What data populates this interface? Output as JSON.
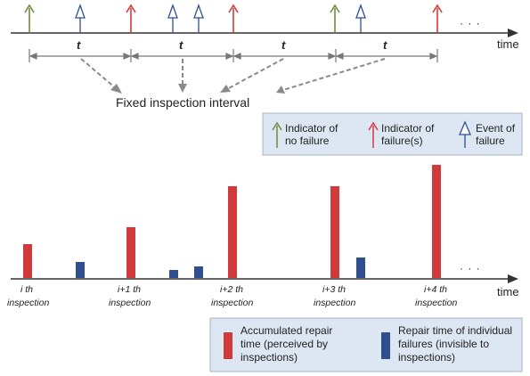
{
  "timeline": {
    "axis_label": "time",
    "ellipsis": "· · ·",
    "interval_symbol": "t",
    "caption": "Fixed inspection interval",
    "arrows": [
      {
        "kind": "no_failure"
      },
      {
        "kind": "failure_event"
      },
      {
        "kind": "failure_indicator"
      },
      {
        "kind": "failure_event"
      },
      {
        "kind": "failure_event"
      },
      {
        "kind": "failure_indicator"
      },
      {
        "kind": "no_failure"
      },
      {
        "kind": "failure_event"
      },
      {
        "kind": "failure_indicator"
      }
    ]
  },
  "legend_top": {
    "no_failure": [
      "Indicator of",
      "no failure"
    ],
    "failure_indicator": [
      "Indicator of",
      "failure(s)"
    ],
    "failure_event": [
      "Event of",
      "failure"
    ]
  },
  "bars_chart": {
    "axis_label": "time",
    "ellipsis": "· · ·",
    "inspections": [
      [
        "i th",
        "inspection"
      ],
      [
        "i+1 th",
        "inspection"
      ],
      [
        "i+2 th",
        "inspection"
      ],
      [
        "i+3 th",
        "inspection"
      ],
      [
        "i+4 th",
        "inspection"
      ]
    ]
  },
  "legend_bottom": {
    "accumulated": [
      "Accumulated repair",
      "time (perceived by",
      "inspections)"
    ],
    "individual": [
      "Repair time of individual",
      "failures (invisible to",
      "inspections)"
    ]
  },
  "colors": {
    "green": "#6e8b3d",
    "red": "#d03a3a",
    "blue": "#2f4f8f",
    "axis": "#333333",
    "gray": "#888888",
    "panel_fill": "#dde7f3",
    "panel_stroke": "#a8b4c4"
  },
  "icons": {
    "no_failure": "green-up-arrow-icon",
    "failure_indicator": "red-up-arrow-icon",
    "failure_event": "hollow-blue-arrow-icon"
  }
}
